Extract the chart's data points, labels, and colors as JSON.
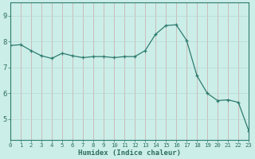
{
  "x": [
    0,
    1,
    2,
    3,
    4,
    5,
    6,
    7,
    8,
    9,
    10,
    11,
    12,
    13,
    14,
    15,
    16,
    17,
    18,
    19,
    20,
    21,
    22,
    23
  ],
  "y": [
    7.85,
    7.88,
    7.65,
    7.45,
    7.35,
    7.55,
    7.45,
    7.38,
    7.42,
    7.42,
    7.38,
    7.42,
    7.42,
    7.65,
    8.28,
    8.62,
    8.65,
    8.05,
    6.68,
    6.0,
    5.72,
    5.75,
    5.65,
    4.55
  ],
  "line_color": "#2d7b6e",
  "marker_color": "#2d7b6e",
  "bg_color": "#cceee8",
  "grid_color_v": "#c8a8a8",
  "grid_color_h": "#b8d8d4",
  "xlabel": "Humidex (Indice chaleur)",
  "ylim": [
    4.2,
    9.5
  ],
  "xlim": [
    0,
    23
  ],
  "yticks": [
    5,
    6,
    7,
    8,
    9
  ],
  "xtick_labels": [
    "0",
    "1",
    "2",
    "3",
    "4",
    "5",
    "6",
    "7",
    "8",
    "9",
    "10",
    "11",
    "12",
    "13",
    "14",
    "15",
    "16",
    "17",
    "18",
    "19",
    "20",
    "21",
    "22",
    "23"
  ],
  "axis_color": "#2d7b6e",
  "tick_color": "#2d6e60"
}
